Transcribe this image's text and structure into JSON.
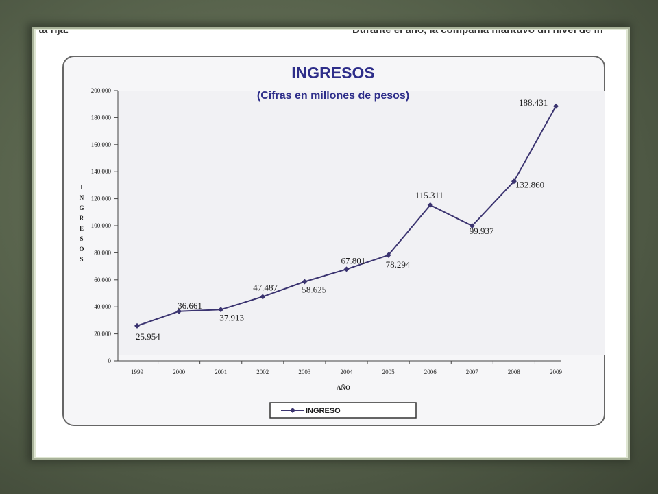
{
  "header": {
    "cut_left_text": "ta rija.",
    "cut_right_text": "Durante el año, la compañía mantuvo un nivel de in"
  },
  "chart_data": {
    "type": "line",
    "title": "INGRESOS",
    "subtitle": "(Cifras en millones de pesos)",
    "xlabel": "AÑO",
    "ylabel": "INGRESOS",
    "categories": [
      "1999",
      "2000",
      "2001",
      "2002",
      "2003",
      "2004",
      "2005",
      "2006",
      "2007",
      "2008",
      "2009"
    ],
    "series": [
      {
        "name": "INGRESO",
        "values": [
          25954,
          36661,
          37913,
          47487,
          58625,
          67801,
          78294,
          115311,
          99937,
          132860,
          188431
        ],
        "labels": [
          "25.954",
          "36.661",
          "37.913",
          "47.487",
          "58.625",
          "67.801",
          "78.294",
          "115.311",
          "99.937",
          "132.860",
          "188.431"
        ],
        "color": "#3b3470"
      }
    ],
    "ylim": [
      0,
      200000
    ],
    "yticks": [
      "0",
      "20.000",
      "40.000",
      "60.000",
      "80.000",
      "100.000",
      "120.000",
      "140.000",
      "160.000",
      "180.000",
      "200.000"
    ],
    "grid": false,
    "legend": "bottom"
  }
}
